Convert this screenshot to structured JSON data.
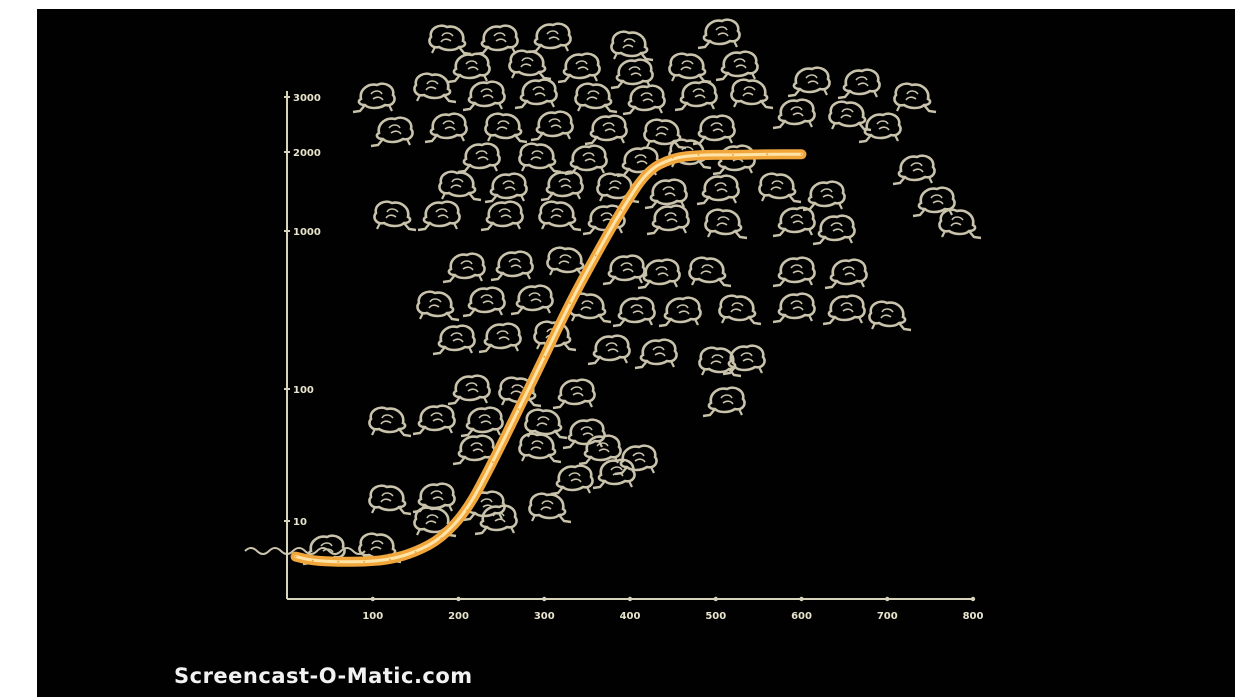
{
  "watermark": "Screencast-O-Matic.com",
  "colors": {
    "background": "#010101",
    "axis": "#d8d4bc",
    "curve": "#f1a63c",
    "curve_core": "#ffe4a8",
    "figures": "#c9c3ac"
  },
  "chart_data": {
    "type": "line",
    "x_axis": {
      "ticks": [
        100,
        200,
        300,
        400,
        500,
        600,
        700,
        800
      ],
      "range": [
        0,
        800
      ]
    },
    "y_axis": {
      "scale": "log",
      "ticks": [
        10,
        100,
        1000,
        2000,
        3000
      ]
    },
    "series": [
      {
        "x": [
          10,
          30,
          60,
          90,
          120,
          150,
          180,
          210,
          240,
          270,
          300,
          330,
          360,
          390,
          420,
          450,
          480,
          520,
          560,
          600
        ],
        "y": [
          3.5,
          3.1,
          3.0,
          3.0,
          3.2,
          4,
          6,
          12,
          28,
          70,
          160,
          350,
          700,
          1200,
          1700,
          1900,
          1950,
          1950,
          1960,
          1960
        ]
      }
    ]
  }
}
